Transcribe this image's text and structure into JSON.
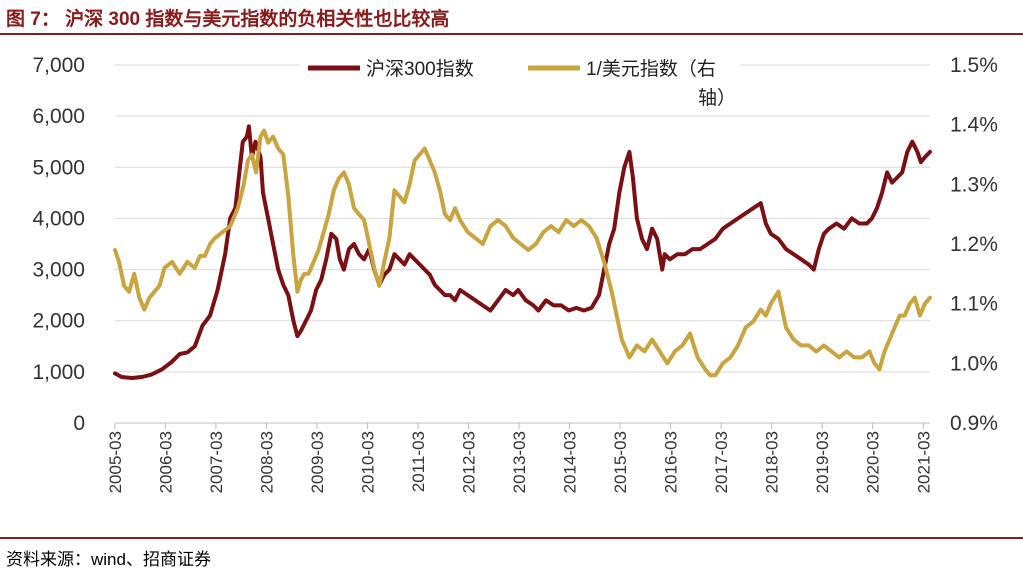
{
  "figure": {
    "title": "图 7：  沪深 300 指数与美元指数的负相关性也比较高",
    "source": "资料来源：wind、招商证券"
  },
  "colors": {
    "accent": "#8b1a1a",
    "series_csi300": "#7b0f14",
    "series_usd_inverse": "#c9a43f",
    "grid": "#d9d9d9"
  },
  "chart_data": {
    "type": "line",
    "title": "沪深 300 指数与美元指数的负相关性也比较高",
    "xlabel": "",
    "ylabel": "",
    "x_range": [
      2005.17,
      2021.3
    ],
    "ylim": [
      0,
      7000
    ],
    "y2lim": [
      0.009,
      0.015
    ],
    "y_ticks": [
      "7,000",
      "6,000",
      "5,000",
      "4,000",
      "3,000",
      "2,000",
      "1,000",
      "0"
    ],
    "y2_ticks": [
      "1.5%",
      "1.4%",
      "1.3%",
      "1.2%",
      "1.1%",
      "1.0%",
      "0.9%"
    ],
    "x_ticks": [
      "2005-03",
      "2006-03",
      "2007-03",
      "2008-03",
      "2009-03",
      "2010-03",
      "2011-03",
      "2012-03",
      "2013-03",
      "2014-03",
      "2015-03",
      "2016-03",
      "2017-03",
      "2018-03",
      "2019-03",
      "2020-03",
      "2021-03"
    ],
    "legend": {
      "position": "top-center",
      "entries": [
        "沪深300指数",
        "1/美元指数（右轴）"
      ]
    },
    "series": [
      {
        "name": "沪深300指数",
        "axis": "left",
        "x": [
          2005.17,
          2005.3,
          2005.5,
          2005.7,
          2005.9,
          2006.1,
          2006.3,
          2006.45,
          2006.6,
          2006.75,
          2006.9,
          2007.05,
          2007.2,
          2007.35,
          2007.45,
          2007.55,
          2007.62,
          2007.7,
          2007.78,
          2007.82,
          2007.88,
          2007.95,
          2008.05,
          2008.1,
          2008.2,
          2008.3,
          2008.4,
          2008.5,
          2008.6,
          2008.7,
          2008.78,
          2008.85,
          2008.95,
          2009.05,
          2009.15,
          2009.25,
          2009.35,
          2009.45,
          2009.55,
          2009.62,
          2009.7,
          2009.8,
          2009.9,
          2010.0,
          2010.1,
          2010.2,
          2010.3,
          2010.4,
          2010.5,
          2010.6,
          2010.7,
          2010.8,
          2010.9,
          2011.0,
          2011.1,
          2011.2,
          2011.3,
          2011.4,
          2011.5,
          2011.6,
          2011.7,
          2011.8,
          2011.9,
          2012.0,
          2012.15,
          2012.3,
          2012.45,
          2012.6,
          2012.75,
          2012.9,
          2013.05,
          2013.15,
          2013.3,
          2013.45,
          2013.55,
          2013.7,
          2013.85,
          2014.0,
          2014.15,
          2014.3,
          2014.45,
          2014.6,
          2014.75,
          2014.85,
          2014.95,
          2015.05,
          2015.15,
          2015.25,
          2015.35,
          2015.42,
          2015.5,
          2015.6,
          2015.7,
          2015.8,
          2015.9,
          2016.0,
          2016.05,
          2016.15,
          2016.3,
          2016.45,
          2016.6,
          2016.75,
          2016.9,
          2017.05,
          2017.2,
          2017.35,
          2017.5,
          2017.65,
          2017.8,
          2017.95,
          2018.05,
          2018.15,
          2018.3,
          2018.45,
          2018.6,
          2018.75,
          2018.9,
          2019.0,
          2019.1,
          2019.2,
          2019.3,
          2019.45,
          2019.6,
          2019.75,
          2019.9,
          2020.05,
          2020.15,
          2020.25,
          2020.35,
          2020.45,
          2020.55,
          2020.65,
          2020.75,
          2020.85,
          2020.95,
          2021.05,
          2021.12,
          2021.2,
          2021.3
        ],
        "values": [
          970,
          900,
          880,
          900,
          950,
          1050,
          1200,
          1350,
          1380,
          1500,
          1900,
          2100,
          2600,
          3300,
          4000,
          4200,
          4800,
          5500,
          5600,
          5800,
          5200,
          5500,
          5200,
          4500,
          4000,
          3500,
          3000,
          2700,
          2500,
          2000,
          1700,
          1800,
          2000,
          2200,
          2600,
          2800,
          3200,
          3700,
          3600,
          3200,
          3000,
          3400,
          3500,
          3300,
          3200,
          3400,
          3000,
          2700,
          2900,
          3000,
          3300,
          3200,
          3100,
          3300,
          3200,
          3100,
          3000,
          2900,
          2700,
          2600,
          2500,
          2500,
          2400,
          2600,
          2500,
          2400,
          2300,
          2200,
          2400,
          2600,
          2500,
          2600,
          2400,
          2300,
          2200,
          2400,
          2300,
          2300,
          2200,
          2250,
          2200,
          2250,
          2500,
          3000,
          3500,
          3800,
          4500,
          5000,
          5300,
          4800,
          4000,
          3600,
          3400,
          3800,
          3600,
          3000,
          3300,
          3200,
          3300,
          3300,
          3400,
          3400,
          3500,
          3600,
          3800,
          3900,
          4000,
          4100,
          4200,
          4300,
          3900,
          3700,
          3600,
          3400,
          3300,
          3200,
          3100,
          3000,
          3400,
          3700,
          3800,
          3900,
          3800,
          4000,
          3900,
          3900,
          4000,
          4200,
          4500,
          4900,
          4700,
          4800,
          4900,
          5300,
          5500,
          5300,
          5100,
          5200,
          5300
        ]
      },
      {
        "name": "1/美元指数（右轴）",
        "axis": "right",
        "x": [
          2005.17,
          2005.25,
          2005.35,
          2005.45,
          2005.55,
          2005.65,
          2005.75,
          2005.85,
          2005.95,
          2006.05,
          2006.15,
          2006.3,
          2006.45,
          2006.6,
          2006.75,
          2006.85,
          2006.95,
          2007.05,
          2007.15,
          2007.3,
          2007.45,
          2007.6,
          2007.72,
          2007.8,
          2007.88,
          2007.96,
          2008.05,
          2008.12,
          2008.2,
          2008.3,
          2008.4,
          2008.5,
          2008.6,
          2008.7,
          2008.78,
          2008.85,
          2008.92,
          2009.0,
          2009.1,
          2009.2,
          2009.3,
          2009.4,
          2009.5,
          2009.6,
          2009.7,
          2009.8,
          2009.9,
          2010.0,
          2010.1,
          2010.2,
          2010.3,
          2010.4,
          2010.5,
          2010.6,
          2010.7,
          2010.8,
          2010.9,
          2011.0,
          2011.1,
          2011.2,
          2011.3,
          2011.4,
          2011.5,
          2011.6,
          2011.7,
          2011.8,
          2011.9,
          2012.0,
          2012.15,
          2012.3,
          2012.45,
          2012.6,
          2012.75,
          2012.9,
          2013.05,
          2013.2,
          2013.35,
          2013.5,
          2013.65,
          2013.8,
          2013.95,
          2014.1,
          2014.25,
          2014.4,
          2014.55,
          2014.7,
          2014.85,
          2015.0,
          2015.1,
          2015.2,
          2015.35,
          2015.5,
          2015.65,
          2015.8,
          2015.95,
          2016.1,
          2016.25,
          2016.4,
          2016.55,
          2016.7,
          2016.85,
          2016.95,
          2017.05,
          2017.2,
          2017.35,
          2017.5,
          2017.65,
          2017.8,
          2017.95,
          2018.05,
          2018.15,
          2018.3,
          2018.45,
          2018.6,
          2018.75,
          2018.9,
          2019.05,
          2019.2,
          2019.35,
          2019.5,
          2019.65,
          2019.8,
          2019.95,
          2020.1,
          2020.2,
          2020.3,
          2020.4,
          2020.5,
          2020.6,
          2020.7,
          2020.8,
          2020.9,
          2021.0,
          2021.1,
          2021.2,
          2021.3
        ],
        "values": [
          0.0119,
          0.0117,
          0.0113,
          0.0112,
          0.0115,
          0.0111,
          0.0109,
          0.0111,
          0.0112,
          0.0113,
          0.0116,
          0.0117,
          0.0115,
          0.0117,
          0.0116,
          0.0118,
          0.0118,
          0.012,
          0.0121,
          0.0122,
          0.0123,
          0.0126,
          0.013,
          0.0134,
          0.0135,
          0.0132,
          0.0138,
          0.0139,
          0.0137,
          0.0138,
          0.0136,
          0.0135,
          0.0128,
          0.0118,
          0.0112,
          0.0114,
          0.0115,
          0.0115,
          0.0117,
          0.0119,
          0.0122,
          0.0125,
          0.0129,
          0.0131,
          0.0132,
          0.013,
          0.0126,
          0.0125,
          0.0124,
          0.012,
          0.0116,
          0.0113,
          0.0117,
          0.0121,
          0.0129,
          0.0128,
          0.0127,
          0.013,
          0.0134,
          0.0135,
          0.0136,
          0.0134,
          0.0132,
          0.0129,
          0.0125,
          0.0124,
          0.0126,
          0.0124,
          0.0122,
          0.0121,
          0.012,
          0.0123,
          0.0124,
          0.0123,
          0.0121,
          0.012,
          0.0119,
          0.012,
          0.0122,
          0.0123,
          0.0122,
          0.0124,
          0.0123,
          0.0124,
          0.0123,
          0.0121,
          0.0117,
          0.0112,
          0.0108,
          0.0104,
          0.0101,
          0.0103,
          0.0102,
          0.0104,
          0.0102,
          0.01,
          0.0102,
          0.0103,
          0.0105,
          0.0101,
          0.0099,
          0.0098,
          0.0098,
          0.01,
          0.0101,
          0.0103,
          0.0106,
          0.0107,
          0.0109,
          0.0108,
          0.011,
          0.0112,
          0.0106,
          0.0104,
          0.0103,
          0.0103,
          0.0102,
          0.0103,
          0.0102,
          0.0101,
          0.0102,
          0.0101,
          0.0101,
          0.0102,
          0.01,
          0.0099,
          0.0102,
          0.0104,
          0.0106,
          0.0108,
          0.0108,
          0.011,
          0.0111,
          0.0108,
          0.011,
          0.0111
        ]
      }
    ]
  }
}
